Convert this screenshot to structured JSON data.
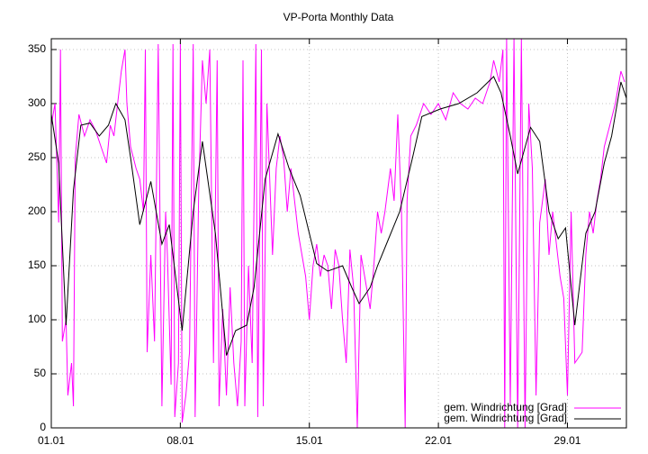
{
  "chart_data": {
    "type": "line",
    "title": "VP-Porta Monthly Data",
    "xlim": [
      0,
      31.2
    ],
    "ylim": [
      0,
      360
    ],
    "xticks": [
      {
        "value": 0,
        "label": "01.01"
      },
      {
        "value": 7,
        "label": "08.01"
      },
      {
        "value": 14,
        "label": "15.01"
      },
      {
        "value": 21,
        "label": "22.01"
      },
      {
        "value": 28,
        "label": "29.01"
      }
    ],
    "yticks": [
      0,
      50,
      100,
      150,
      200,
      250,
      300,
      350
    ],
    "grid": true,
    "legend": "lower right",
    "series": [
      {
        "name": "gem. Windrichtung [Grad]",
        "color": "#ff00ff",
        "x": [
          0,
          0.2,
          0.4,
          0.5,
          0.6,
          0.8,
          0.9,
          1.1,
          1.2,
          1.3,
          1.5,
          1.8,
          2.1,
          2.4,
          2.7,
          3.0,
          3.2,
          3.4,
          3.6,
          3.8,
          4.0,
          4.1,
          4.3,
          4.6,
          4.8,
          5.0,
          5.1,
          5.2,
          5.4,
          5.6,
          5.8,
          6.0,
          6.2,
          6.3,
          6.5,
          6.6,
          6.7,
          6.9,
          7.0,
          7.1,
          7.3,
          7.5,
          7.7,
          7.8,
          8.0,
          8.2,
          8.4,
          8.6,
          8.8,
          9.0,
          9.1,
          9.3,
          9.5,
          9.7,
          9.9,
          10.1,
          10.3,
          10.4,
          10.5,
          10.7,
          10.9,
          11.1,
          11.2,
          11.4,
          11.5,
          11.7,
          12.0,
          12.2,
          12.4,
          12.6,
          12.8,
          13.0,
          13.2,
          13.4,
          13.6,
          13.8,
          14.0,
          14.2,
          14.4,
          14.6,
          14.8,
          15.0,
          15.2,
          15.4,
          15.6,
          15.8,
          16.0,
          16.2,
          16.4,
          16.6,
          16.8,
          17.0,
          17.3,
          17.5,
          17.7,
          17.9,
          18.1,
          18.4,
          18.6,
          18.8,
          19.0,
          19.2,
          19.3,
          19.5,
          19.8,
          20.2,
          20.6,
          21.0,
          21.4,
          21.8,
          22.2,
          22.6,
          23.0,
          23.4,
          23.8,
          24.0,
          24.3,
          24.5,
          24.6,
          24.7,
          24.9,
          25.1,
          25.3,
          25.5,
          25.7,
          25.9,
          26.1,
          26.3,
          26.5,
          26.8,
          27.0,
          27.2,
          27.4,
          27.6,
          27.8,
          28.0,
          28.2,
          28.4,
          28.6,
          28.8,
          29.0,
          29.2,
          29.4,
          29.6,
          29.8,
          30.0,
          30.3,
          30.6,
          30.9,
          31.1
        ],
        "values": [
          280,
          300,
          190,
          350,
          80,
          100,
          30,
          60,
          20,
          250,
          290,
          270,
          285,
          275,
          260,
          245,
          280,
          270,
          300,
          330,
          350,
          300,
          260,
          240,
          230,
          200,
          350,
          70,
          160,
          80,
          355,
          20,
          200,
          160,
          40,
          355,
          10,
          60,
          355,
          5,
          30,
          70,
          355,
          10,
          220,
          340,
          300,
          350,
          60,
          340,
          20,
          110,
          30,
          130,
          60,
          20,
          80,
          340,
          20,
          150,
          60,
          355,
          10,
          350,
          20,
          300,
          160,
          240,
          270,
          250,
          200,
          240,
          210,
          180,
          160,
          140,
          100,
          150,
          170,
          140,
          160,
          150,
          110,
          165,
          150,
          100,
          60,
          165,
          130,
          0,
          160,
          140,
          110,
          150,
          200,
          180,
          200,
          240,
          210,
          290,
          200,
          0,
          210,
          270,
          280,
          300,
          290,
          300,
          285,
          310,
          300,
          295,
          305,
          300,
          320,
          340,
          320,
          350,
          0,
          360,
          20,
          360,
          0,
          360,
          0,
          300,
          240,
          30,
          190,
          230,
          160,
          200,
          170,
          140,
          120,
          30,
          200,
          60,
          65,
          70,
          160,
          200,
          180,
          210,
          230,
          260,
          280,
          300,
          330,
          320
        ]
      },
      {
        "name": "gem. Windrichtung [Grad]",
        "color": "#000000",
        "x": [
          0,
          0.4,
          0.8,
          1.2,
          1.6,
          2.1,
          2.6,
          3.1,
          3.5,
          4.0,
          4.3,
          4.8,
          5.4,
          6.0,
          6.4,
          7.1,
          7.7,
          8.2,
          8.9,
          9.5,
          10.0,
          10.6,
          11.0,
          11.6,
          12.3,
          12.9,
          13.5,
          14.0,
          14.4,
          15.0,
          15.8,
          16.3,
          16.7,
          17.3,
          17.7,
          18.3,
          18.9,
          19.6,
          20.1,
          21.1,
          22.1,
          23.1,
          24.0,
          24.4,
          24.9,
          25.3,
          26.0,
          26.5,
          27.0,
          27.5,
          27.9,
          28.4,
          29.0,
          29.5,
          30.0,
          30.4,
          30.9,
          31.2
        ],
        "values": [
          290,
          245,
          95,
          220,
          280,
          282,
          270,
          280,
          300,
          285,
          250,
          188,
          228,
          170,
          188,
          90,
          200,
          265,
          180,
          67,
          90,
          95,
          130,
          230,
          272,
          240,
          215,
          180,
          152,
          145,
          150,
          130,
          115,
          130,
          150,
          175,
          200,
          250,
          288,
          295,
          300,
          310,
          325,
          310,
          270,
          235,
          278,
          265,
          200,
          175,
          185,
          95,
          180,
          200,
          245,
          270,
          320,
          305
        ]
      }
    ]
  }
}
